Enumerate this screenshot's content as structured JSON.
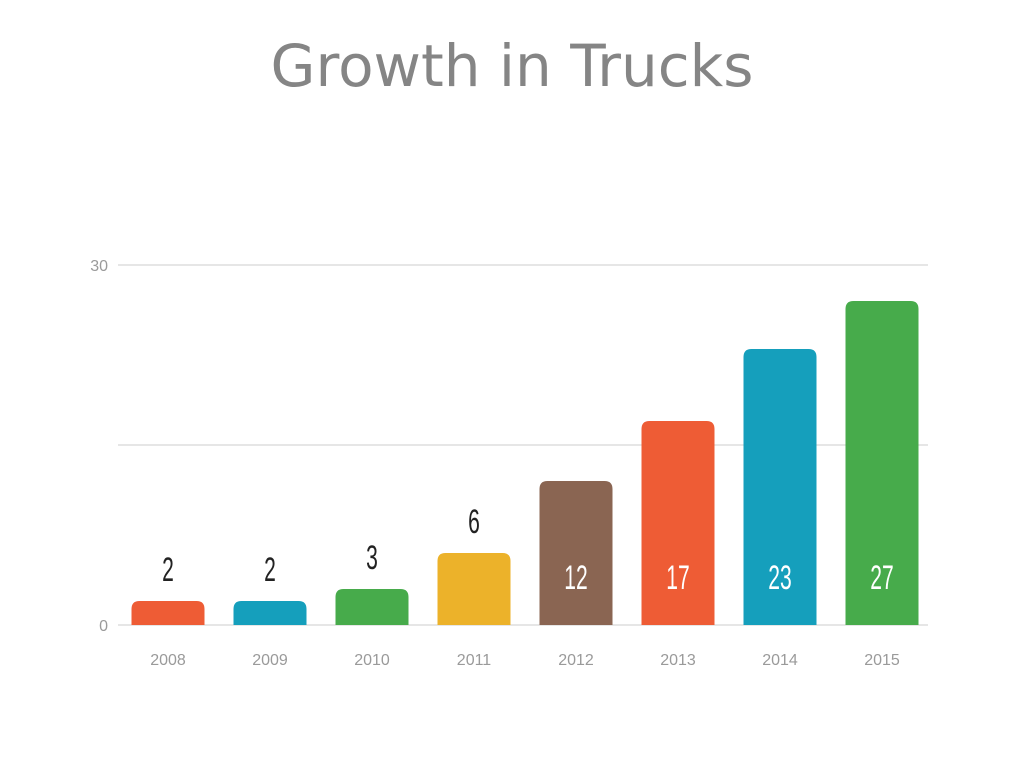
{
  "chart_data": {
    "type": "bar",
    "title": "Growth in Trucks",
    "xlabel": "",
    "ylabel": "",
    "categories": [
      "2008",
      "2009",
      "2010",
      "2011",
      "2012",
      "2013",
      "2014",
      "2015"
    ],
    "values": [
      2,
      2,
      3,
      6,
      12,
      17,
      23,
      27
    ],
    "value_labels": [
      "2",
      "2",
      "3",
      "6",
      "12",
      "17",
      "23",
      "27"
    ],
    "colors": [
      "#ee5c35",
      "#159fbc",
      "#47ab4b",
      "#ecb22a",
      "#8a6552",
      "#ee5c35",
      "#159fbc",
      "#47ab4b"
    ],
    "ylim": [
      0,
      30
    ],
    "y_ticks": [
      0,
      30
    ],
    "y_tick_labels": [
      "0",
      "30"
    ],
    "gridlines": [
      0,
      15,
      30
    ],
    "grid": true,
    "legend": "none",
    "label_color_outside": "#222222",
    "label_color_inside": "#ffffff",
    "gridline_color": "#dddddd",
    "tick_color": "#9a9a9a"
  }
}
